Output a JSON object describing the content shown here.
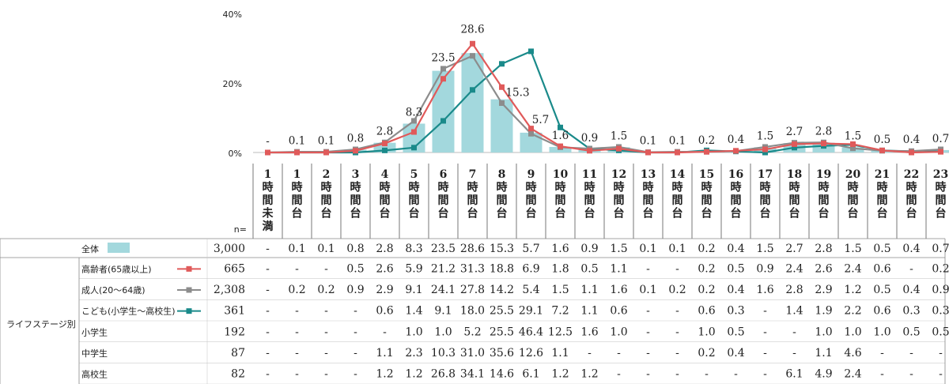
{
  "chart_data": {
    "type": "bar",
    "y_axis": {
      "ticks": [
        "40%",
        "20%",
        "0%"
      ],
      "ylim": [
        0,
        40
      ]
    },
    "categories": [
      "1時間未満",
      "1時間台",
      "2時間台",
      "3時間台",
      "4時間台",
      "5時間台",
      "6時間台",
      "7時間台",
      "8時間台",
      "9時間台",
      "10時間台",
      "11時間台",
      "12時間台",
      "13時間台",
      "14時間台",
      "15時間台",
      "16時間台",
      "17時間台",
      "18時間台",
      "19時間台",
      "20時間台",
      "21時間台",
      "22時間台",
      "23時間台"
    ],
    "bar_color": "#a3d8dd",
    "data_labels": [
      "-",
      "0.1",
      "0.1",
      "0.8",
      "2.8",
      "8.3",
      "23.5",
      "28.6",
      "15.3",
      "5.7",
      "1.6",
      "0.9",
      "1.5",
      "0.1",
      "0.1",
      "0.2",
      "0.4",
      "1.5",
      "2.7",
      "2.8",
      "1.5",
      "0.5",
      "0.4",
      "0.7"
    ],
    "n_label": "n=",
    "group_label": "ライフステージ別",
    "series": [
      {
        "name": "全体",
        "n": "3,000",
        "type": "bar",
        "color": "#a3d8dd",
        "values": [
          0,
          0.1,
          0.1,
          0.8,
          2.8,
          8.3,
          23.5,
          28.6,
          15.3,
          5.7,
          1.6,
          0.9,
          1.5,
          0.1,
          0.1,
          0.2,
          0.4,
          1.5,
          2.7,
          2.8,
          1.5,
          0.5,
          0.4,
          0.7
        ],
        "cells": [
          "-",
          "0.1",
          "0.1",
          "0.8",
          "2.8",
          "8.3",
          "23.5",
          "28.6",
          "15.3",
          "5.7",
          "1.6",
          "0.9",
          "1.5",
          "0.1",
          "0.1",
          "0.2",
          "0.4",
          "1.5",
          "2.7",
          "2.8",
          "1.5",
          "0.5",
          "0.4",
          "0.7"
        ]
      },
      {
        "name": "高齢者(65歳以上)",
        "n": "665",
        "type": "line",
        "color": "#e05a5a",
        "values": [
          0,
          0,
          0,
          0.5,
          2.6,
          5.9,
          21.2,
          31.3,
          18.8,
          6.9,
          1.8,
          0.5,
          1.1,
          0,
          0,
          0.2,
          0.5,
          0.9,
          2.4,
          2.6,
          2.4,
          0.6,
          0,
          0.2
        ],
        "cells": [
          "-",
          "-",
          "-",
          "0.5",
          "2.6",
          "5.9",
          "21.2",
          "31.3",
          "18.8",
          "6.9",
          "1.8",
          "0.5",
          "1.1",
          "-",
          "-",
          "0.2",
          "0.5",
          "0.9",
          "2.4",
          "2.6",
          "2.4",
          "0.6",
          "-",
          "0.2"
        ]
      },
      {
        "name": "成人(20～64歳)",
        "n": "2,308",
        "type": "line",
        "color": "#8c8c8c",
        "values": [
          0,
          0.2,
          0.2,
          0.9,
          2.9,
          9.1,
          24.1,
          27.8,
          14.2,
          5.4,
          1.5,
          1.1,
          1.6,
          0.1,
          0.2,
          0.2,
          0.4,
          1.6,
          2.8,
          2.9,
          1.2,
          0.5,
          0.4,
          0.9
        ],
        "cells": [
          "-",
          "0.2",
          "0.2",
          "0.9",
          "2.9",
          "9.1",
          "24.1",
          "27.8",
          "14.2",
          "5.4",
          "1.5",
          "1.1",
          "1.6",
          "0.1",
          "0.2",
          "0.2",
          "0.4",
          "1.6",
          "2.8",
          "2.9",
          "1.2",
          "0.5",
          "0.4",
          "0.9"
        ]
      },
      {
        "name": "こども(小学生～高校生)",
        "n": "361",
        "type": "line",
        "color": "#1a8a8a",
        "values": [
          0,
          0,
          0,
          0,
          0.6,
          1.4,
          9.1,
          18.0,
          25.5,
          29.1,
          7.2,
          1.1,
          0.6,
          0,
          0,
          0.6,
          0.3,
          0,
          1.4,
          1.9,
          2.2,
          0.6,
          0.3,
          0.3
        ],
        "cells": [
          "-",
          "-",
          "-",
          "-",
          "0.6",
          "1.4",
          "9.1",
          "18.0",
          "25.5",
          "29.1",
          "7.2",
          "1.1",
          "0.6",
          "-",
          "-",
          "0.6",
          "0.3",
          "-",
          "1.4",
          "1.9",
          "2.2",
          "0.6",
          "0.3",
          "0.3"
        ]
      },
      {
        "name": "小学生",
        "n": "192",
        "cells": [
          "-",
          "-",
          "-",
          "-",
          "-",
          "1.0",
          "1.0",
          "5.2",
          "25.5",
          "46.4",
          "12.5",
          "1.6",
          "1.0",
          "-",
          "-",
          "1.0",
          "0.5",
          "-",
          "-",
          "1.0",
          "1.0",
          "1.0",
          "0.5",
          "0.5"
        ]
      },
      {
        "name": "中学生",
        "n": "87",
        "cells": [
          "-",
          "-",
          "-",
          "-",
          "1.1",
          "2.3",
          "10.3",
          "31.0",
          "35.6",
          "12.6",
          "1.1",
          "-",
          "-",
          "-",
          "-",
          "0.2",
          "0.4",
          "-",
          "-",
          "1.1",
          "4.6",
          "-",
          "-",
          "-"
        ]
      },
      {
        "name": "高校生",
        "n": "82",
        "cells": [
          "-",
          "-",
          "-",
          "-",
          "1.2",
          "1.2",
          "26.8",
          "34.1",
          "14.6",
          "6.1",
          "1.2",
          "1.2",
          "-",
          "-",
          "-",
          "-",
          "-",
          "-",
          "6.1",
          "4.9",
          "2.4",
          "-",
          "-",
          "-"
        ]
      }
    ]
  }
}
